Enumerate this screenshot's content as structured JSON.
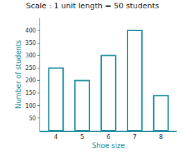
{
  "chart_data": {
    "type": "bar",
    "title": "Scale : 1 unit length = 50 students",
    "x_label": "Shoe size",
    "y_label": "Number of students",
    "categories": [
      "4",
      "5",
      "6",
      "7",
      "8"
    ],
    "values": [
      250,
      200,
      300,
      400,
      140
    ],
    "color": "#1f8fa0",
    "ylim": [
      0,
      450
    ],
    "yticks": [
      50,
      100,
      150,
      200,
      250,
      300,
      350,
      400
    ],
    "grid": false
  }
}
